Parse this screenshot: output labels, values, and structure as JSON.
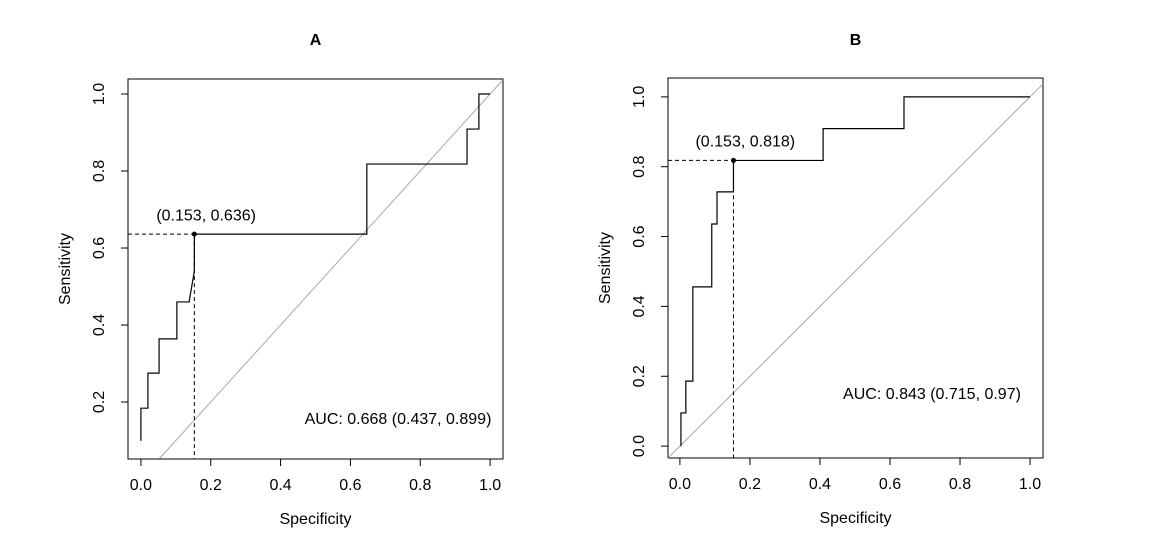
{
  "chart_data": [
    {
      "type": "line",
      "title": "A",
      "x_label": "Specificity",
      "y_label": "Sensitivity",
      "x": [
        0,
        0,
        0.02,
        0.02,
        0.052,
        0.052,
        0.103,
        0.103,
        0.138,
        0.153,
        0.153,
        0.647,
        0.647,
        0.934,
        0.934,
        0.968,
        0.968,
        1.0
      ],
      "values": [
        0.099,
        0.184,
        0.184,
        0.275,
        0.275,
        0.364,
        0.364,
        0.46,
        0.46,
        0.54,
        0.636,
        0.636,
        0.818,
        0.818,
        0.909,
        0.909,
        1.0,
        1.0
      ],
      "color": "#000000",
      "threshold": {
        "x": 0.153,
        "y": 0.636,
        "label": "(0.153, 0.636)"
      },
      "annotation": "AUC: 0.668 (0.437, 0.899)",
      "xlim": [
        -0.037,
        1.037
      ],
      "ylim": [
        0.052,
        1.039
      ],
      "xticks": [
        {
          "value": 0,
          "label": "0.0"
        },
        0.2,
        0.4,
        0.6,
        0.8,
        {
          "value": 1,
          "label": "1.0"
        }
      ],
      "yticks": [
        0.2,
        0.4,
        0.6,
        0.8,
        {
          "value": 1,
          "label": "1.0"
        }
      ]
    },
    {
      "type": "line",
      "title": "B",
      "x_label": "Specificity",
      "y_label": "Sensitivity",
      "x": [
        0.003,
        0.003,
        0.017,
        0.017,
        0.037,
        0.037,
        0.091,
        0.091,
        0.106,
        0.106,
        0.153,
        0.153,
        0.409,
        0.409,
        0.64,
        0.64,
        1.0
      ],
      "values": [
        0,
        0.095,
        0.095,
        0.186,
        0.186,
        0.456,
        0.456,
        0.636,
        0.636,
        0.728,
        0.728,
        0.818,
        0.818,
        0.909,
        0.909,
        1.0,
        1.0
      ],
      "color": "#000000",
      "threshold": {
        "x": 0.153,
        "y": 0.818,
        "label": "(0.153, 0.818)"
      },
      "annotation": "AUC: 0.843 (0.715, 0.97)",
      "xlim": [
        -0.034,
        1.037
      ],
      "ylim": [
        -0.034,
        1.054
      ],
      "xticks": [
        {
          "value": 0,
          "label": "0.0"
        },
        0.2,
        0.4,
        0.6,
        0.8,
        {
          "value": 1,
          "label": "1.0"
        }
      ],
      "yticks": [
        {
          "value": 0,
          "label": "0.0"
        },
        0.2,
        0.4,
        0.6,
        0.8,
        {
          "value": 1,
          "label": "1.0"
        }
      ]
    }
  ]
}
